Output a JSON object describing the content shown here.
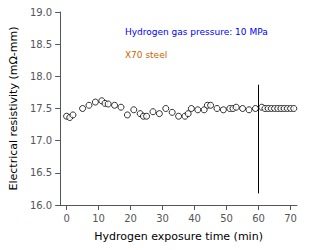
{
  "chart_data": {
    "type": "scatter",
    "xlabel": "Hydrogen exposure time (min)",
    "ylabel": "Electrical resistivity (mΩ-mm)",
    "x": [
      0,
      1,
      2,
      5,
      7,
      9,
      11,
      12,
      13,
      15,
      17,
      19,
      21,
      23,
      24,
      25,
      27,
      29,
      31,
      33,
      35,
      37,
      38,
      39,
      41,
      43,
      44,
      45,
      47,
      49,
      51,
      52,
      53,
      55,
      57,
      59,
      61,
      62,
      63,
      64,
      65,
      66,
      67,
      68,
      69,
      70,
      71
    ],
    "values": [
      17.38,
      17.36,
      17.4,
      17.5,
      17.55,
      17.6,
      17.62,
      17.58,
      17.57,
      17.55,
      17.52,
      17.4,
      17.48,
      17.42,
      17.38,
      17.38,
      17.45,
      17.42,
      17.5,
      17.44,
      17.38,
      17.38,
      17.42,
      17.5,
      17.48,
      17.48,
      17.55,
      17.55,
      17.5,
      17.48,
      17.5,
      17.5,
      17.52,
      17.5,
      17.48,
      17.5,
      17.52,
      17.5,
      17.5,
      17.5,
      17.5,
      17.5,
      17.5,
      17.5,
      17.5,
      17.5,
      17.5
    ],
    "color": "black",
    "marker": "hollow circle",
    "xlim": [
      -2,
      72
    ],
    "ylim": [
      16.0,
      19.0
    ],
    "xticks": [
      0,
      10,
      20,
      30,
      40,
      50,
      60,
      70
    ],
    "yticks": [
      {
        "value": 16.0,
        "label": "16.0"
      },
      16.5,
      {
        "value": 17.0,
        "label": "17.0"
      },
      17.5,
      {
        "value": 18.0,
        "label": "18.0"
      },
      18.5,
      {
        "value": 19.0,
        "label": "19.0"
      }
    ],
    "grid": false,
    "annotations": [
      {
        "text": "Hydrogen gas pressure: 10 MPa",
        "color": "#0000FF"
      },
      {
        "text": "X70 steel",
        "color": "#CC6600"
      }
    ],
    "vline": {
      "x": 60,
      "ymin": 16.18,
      "ymax": 17.87,
      "color": "black"
    }
  }
}
